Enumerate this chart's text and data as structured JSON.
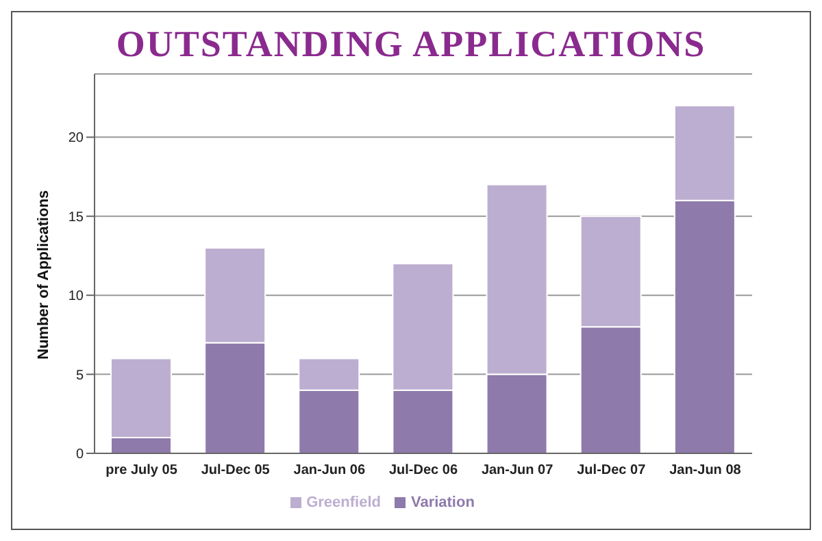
{
  "chart_data": {
    "type": "bar",
    "title": "OUTSTANDING APPLICATIONS",
    "ylabel": "Number of Applications",
    "categories": [
      "pre July 05",
      "Jul-Dec 05",
      "Jan-Jun 06",
      "Jul-Dec 06",
      "Jan-Jun 07",
      "Jul-Dec 07",
      "Jan-Jun 08"
    ],
    "stacked": true,
    "series": [
      {
        "name": "Variation",
        "color": "#8e7aab",
        "values": [
          1,
          7,
          4,
          4,
          5,
          8,
          16
        ]
      },
      {
        "name": "Greenfield",
        "color": "#bcaed0",
        "values": [
          5,
          6,
          2,
          8,
          12,
          7,
          6
        ]
      }
    ],
    "ylim": [
      0,
      24
    ],
    "yticks": [
      0,
      5,
      10,
      15,
      20
    ],
    "grid": "y",
    "legend": "bottom"
  }
}
